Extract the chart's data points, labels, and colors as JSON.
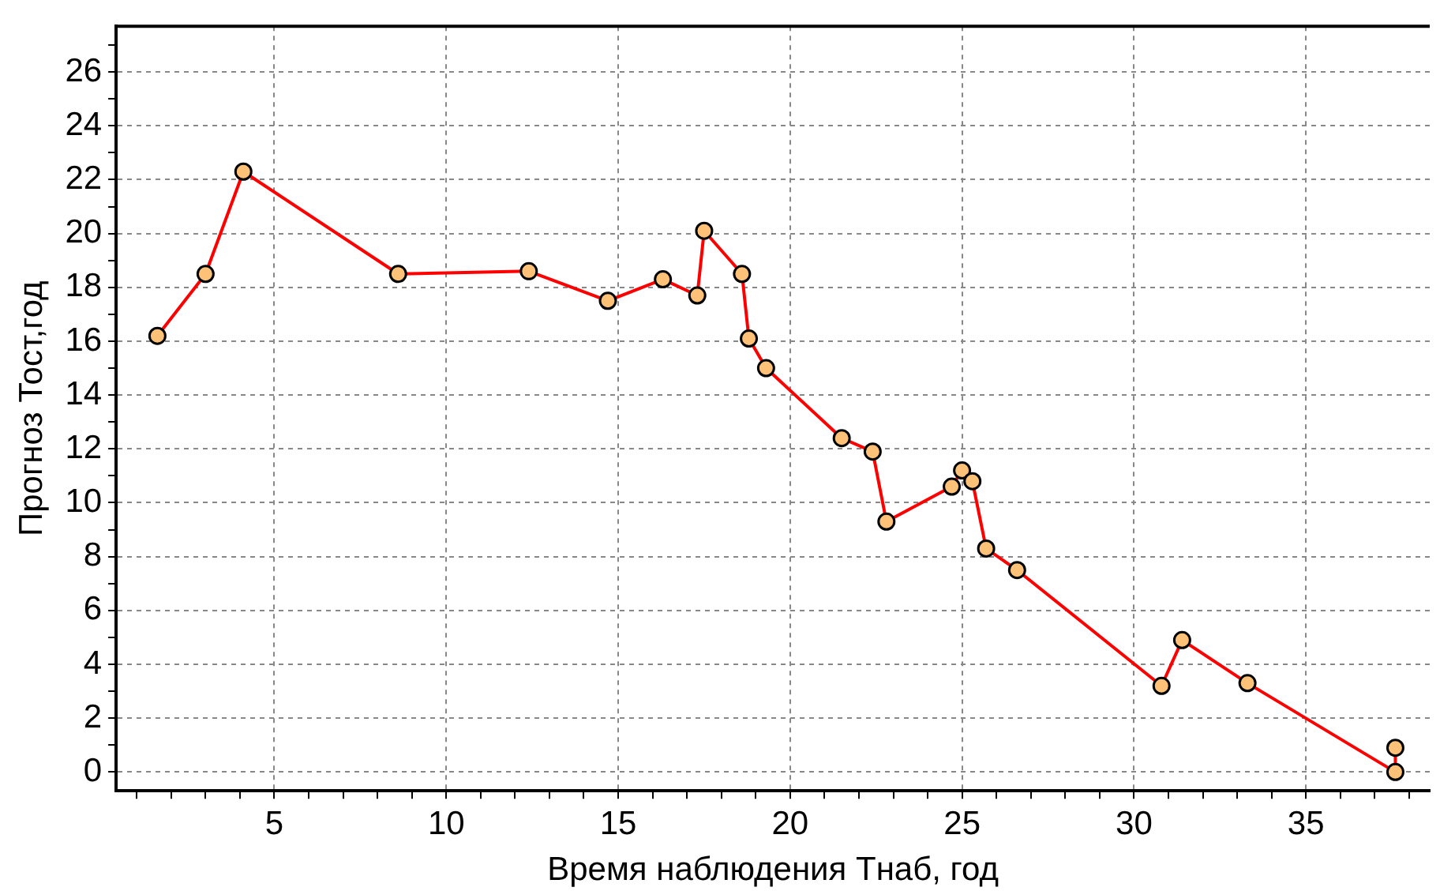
{
  "chart_data": {
    "type": "line",
    "xlabel": "Время наблюдения Тнаб, год",
    "ylabel": "Прогноз Тост,год",
    "xlim": [
      0.4,
      38.6
    ],
    "ylim": [
      -0.7,
      27.7
    ],
    "xticks": [
      {
        "value": 1,
        "label": null
      },
      {
        "value": 2,
        "label": null
      },
      {
        "value": 3,
        "label": null
      },
      {
        "value": 4,
        "label": null
      },
      5,
      {
        "value": 6,
        "label": null
      },
      {
        "value": 7,
        "label": null
      },
      {
        "value": 8,
        "label": null
      },
      {
        "value": 9,
        "label": null
      },
      10,
      {
        "value": 11,
        "label": null
      },
      {
        "value": 12,
        "label": null
      },
      {
        "value": 13,
        "label": null
      },
      {
        "value": 14,
        "label": null
      },
      15,
      {
        "value": 16,
        "label": null
      },
      {
        "value": 17,
        "label": null
      },
      {
        "value": 18,
        "label": null
      },
      {
        "value": 19,
        "label": null
      },
      20,
      {
        "value": 21,
        "label": null
      },
      {
        "value": 22,
        "label": null
      },
      {
        "value": 23,
        "label": null
      },
      {
        "value": 24,
        "label": null
      },
      25,
      {
        "value": 26,
        "label": null
      },
      {
        "value": 27,
        "label": null
      },
      {
        "value": 28,
        "label": null
      },
      {
        "value": 29,
        "label": null
      },
      30,
      {
        "value": 31,
        "label": null
      },
      {
        "value": 32,
        "label": null
      },
      {
        "value": 33,
        "label": null
      },
      {
        "value": 34,
        "label": null
      },
      35,
      {
        "value": 36,
        "label": null
      },
      {
        "value": 37,
        "label": null
      },
      {
        "value": 38,
        "label": null
      }
    ],
    "yticks": [
      0,
      {
        "value": 1,
        "label": null
      },
      2,
      {
        "value": 3,
        "label": null
      },
      4,
      {
        "value": 5,
        "label": null
      },
      6,
      {
        "value": 7,
        "label": null
      },
      8,
      {
        "value": 9,
        "label": null
      },
      10,
      {
        "value": 11,
        "label": null
      },
      12,
      {
        "value": 13,
        "label": null
      },
      14,
      {
        "value": 15,
        "label": null
      },
      16,
      {
        "value": 17,
        "label": null
      },
      18,
      {
        "value": 19,
        "label": null
      },
      20,
      {
        "value": 21,
        "label": null
      },
      22,
      {
        "value": 23,
        "label": null
      },
      24,
      {
        "value": 25,
        "label": null
      },
      26,
      {
        "value": 27,
        "label": null
      }
    ],
    "grid": true,
    "marker": "circle",
    "line_style": "solid",
    "legend": false,
    "series": [
      {
        "color": "#ff0000",
        "x": [
          1.6,
          3.0,
          4.1,
          8.6,
          12.4,
          14.7,
          16.3,
          17.3,
          17.5,
          18.6,
          18.8,
          19.3,
          21.5,
          22.4,
          22.8,
          24.7,
          25.0,
          25.3,
          25.7,
          26.6,
          30.8,
          31.4,
          33.3,
          37.6,
          37.6
        ],
        "values": [
          16.2,
          18.5,
          22.3,
          18.5,
          18.6,
          17.5,
          18.3,
          17.7,
          20.1,
          18.5,
          16.1,
          15.0,
          12.4,
          11.9,
          9.3,
          10.6,
          11.2,
          10.8,
          8.3,
          7.5,
          3.2,
          4.9,
          3.3,
          0,
          0.9
        ]
      }
    ]
  }
}
